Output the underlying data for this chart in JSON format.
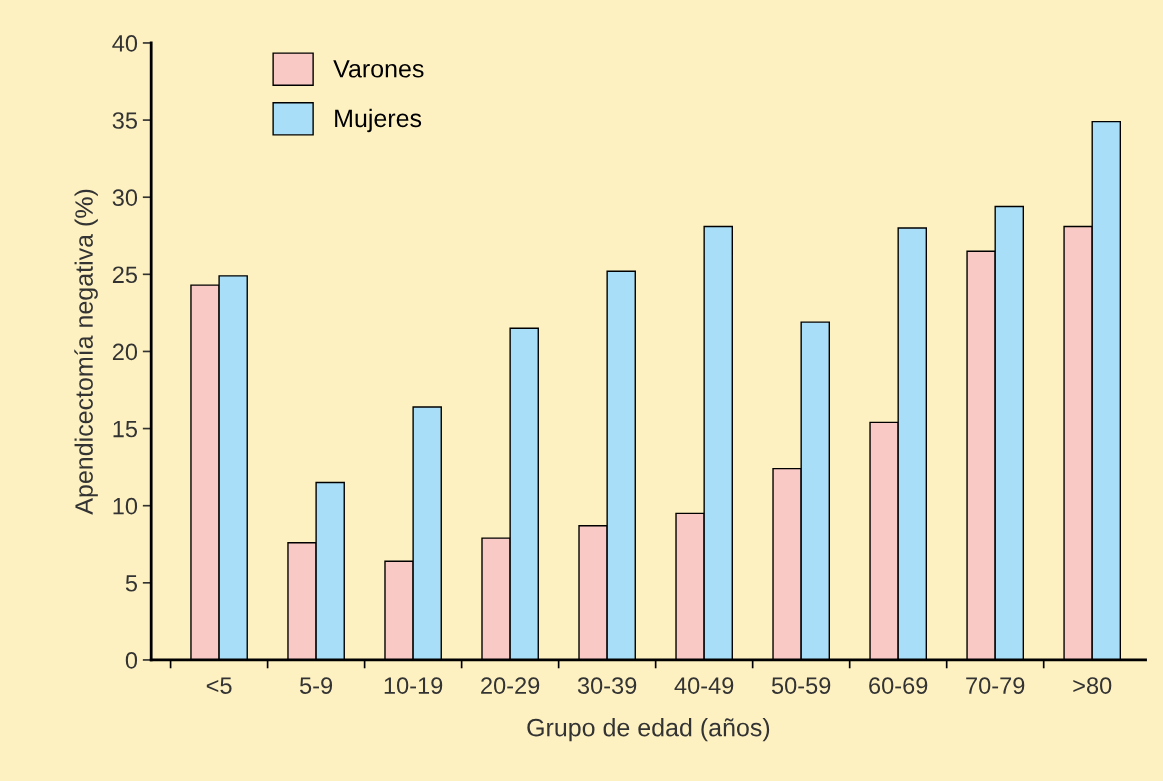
{
  "chart_data": {
    "type": "bar",
    "xlabel": "Grupo de edad (años)",
    "ylabel": "Apendicectomía negativa (%)",
    "categories": [
      "<5",
      "5-9",
      "10-19",
      "20-29",
      "30-39",
      "40-49",
      "50-59",
      "60-69",
      "70-79",
      ">80"
    ],
    "series": [
      {
        "name": "Varones",
        "color": "#f9c9c5",
        "values": [
          24.3,
          7.6,
          6.4,
          7.9,
          8.7,
          9.5,
          12.4,
          15.4,
          26.5,
          28.1
        ]
      },
      {
        "name": "Mujeres",
        "color": "#a8def8",
        "values": [
          24.9,
          11.5,
          16.4,
          21.5,
          25.2,
          28.1,
          21.9,
          28.0,
          29.4,
          34.9
        ]
      }
    ],
    "ylim": [
      0,
      40
    ],
    "yticks": [
      0,
      5,
      10,
      15,
      20,
      25,
      30,
      35,
      40
    ],
    "grid": false,
    "legend": "top left"
  }
}
